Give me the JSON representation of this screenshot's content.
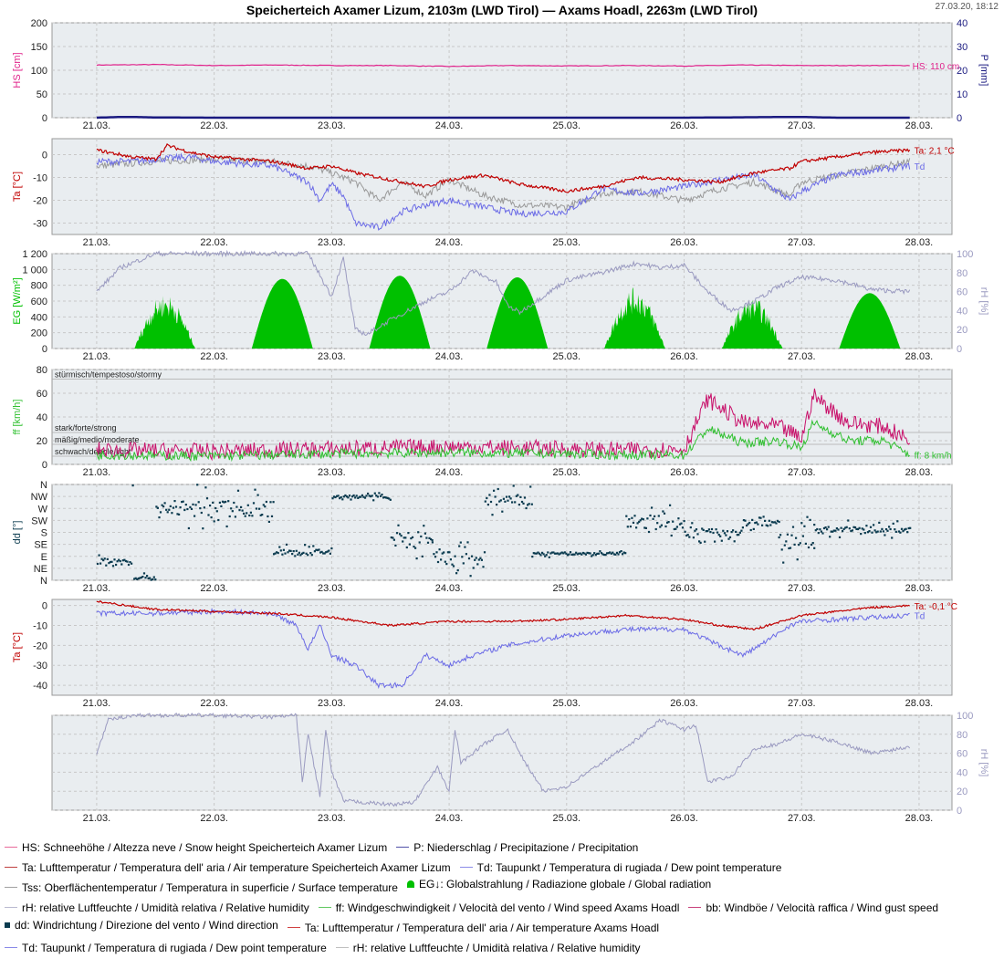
{
  "title": "Speicherteich Axamer Lizum, 2103m (LWD Tirol) — Axams Hoadl, 2263m (LWD Tirol)",
  "timestamp": "27.03.20, 18:12",
  "colors": {
    "snow": "#e0218a",
    "precip": "#1a1a80",
    "ta": "#c00000",
    "td": "#6a6ae6",
    "tss": "#9a9a9a",
    "eg": "#00c000",
    "rh": "#9a9ac0",
    "ff": "#30c030",
    "bb": "#c8106a",
    "dd": "#0b3b4f",
    "grid": "#c8c8c8",
    "plotbg": "#e9edf0"
  },
  "chart_data": [
    {
      "type": "line",
      "name": "snow_precip",
      "x_ticks": [
        "21.03.",
        "22.03.",
        "23.03.",
        "24.03.",
        "25.03.",
        "26.03.",
        "27.03.",
        "28.03."
      ],
      "ylabel": "HS [cm]",
      "ylim": [
        0,
        200
      ],
      "yticks": [
        "0",
        "50",
        "100",
        "150",
        "200"
      ],
      "y2label": "P [mm]",
      "y2lim": [
        0,
        40
      ],
      "y2ticks": [
        "0",
        "10",
        "20",
        "30",
        "40"
      ],
      "series": [
        {
          "key": "HS",
          "axis": "left",
          "x": [
            0,
            0.5,
            1,
            1.5,
            2,
            2.5,
            3,
            3.5,
            4,
            4.5,
            5,
            5.5,
            6,
            6.5,
            6.92
          ],
          "values": [
            111,
            112,
            110,
            111,
            110,
            110,
            108,
            110,
            109,
            110,
            109,
            111,
            110,
            110,
            110
          ]
        },
        {
          "key": "P",
          "axis": "right",
          "x": [
            0,
            0.2,
            0.3,
            0.5,
            1,
            2,
            3,
            4,
            5,
            5.9,
            6.0,
            6.3,
            6.92
          ],
          "values": [
            0,
            0.3,
            0.3,
            0.1,
            0,
            0,
            0,
            0,
            0,
            0.3,
            0.3,
            0,
            0
          ]
        }
      ],
      "annotations": [
        {
          "key": "HS",
          "text": "HS: 110 cm"
        }
      ]
    },
    {
      "type": "line",
      "name": "temperature_lizum",
      "x_ticks": [
        "21.03.",
        "22.03.",
        "23.03.",
        "24.03.",
        "25.03.",
        "26.03.",
        "27.03.",
        "28.03."
      ],
      "ylabel": "Ta [°C]",
      "ylim": [
        -35,
        7
      ],
      "yticks": [
        "-30",
        "-20",
        "-10",
        "0"
      ],
      "series": [
        {
          "key": "Ta",
          "x": [
            0,
            0.3,
            0.5,
            0.6,
            0.8,
            1,
            1.5,
            1.8,
            2,
            2.2,
            2.5,
            2.8,
            3,
            3.3,
            3.6,
            4,
            4.3,
            4.6,
            5,
            5.3,
            5.6,
            5.9,
            6,
            6.3,
            6.6,
            6.92
          ],
          "values": [
            2,
            -1,
            -2,
            4,
            1,
            -1,
            -3,
            -6,
            -5,
            -8,
            -11,
            -14,
            -11,
            -9,
            -13,
            -16,
            -14,
            -10,
            -11,
            -12,
            -8,
            -6,
            -3,
            -1,
            1,
            2
          ]
        },
        {
          "key": "Td",
          "x": [
            0,
            0.3,
            0.5,
            0.8,
            1,
            1.5,
            1.8,
            1.9,
            2,
            2.1,
            2.2,
            2.4,
            2.6,
            2.8,
            3,
            3.3,
            3.6,
            4,
            4.3,
            4.6,
            5,
            5.3,
            5.6,
            5.9,
            6,
            6.3,
            6.6,
            6.92
          ],
          "values": [
            -3,
            -3,
            -2,
            -1,
            -3,
            -5,
            -12,
            -20,
            -13,
            -18,
            -30,
            -32,
            -25,
            -22,
            -20,
            -23,
            -26,
            -25,
            -15,
            -17,
            -14,
            -11,
            -9,
            -20,
            -16,
            -9,
            -7,
            -5
          ]
        },
        {
          "key": "Tss",
          "x": [
            0,
            0.5,
            1,
            1.5,
            1.8,
            2,
            2.2,
            2.4,
            2.6,
            2.8,
            3,
            3.3,
            3.6,
            4,
            4.3,
            4.6,
            5,
            5.3,
            5.6,
            5.9,
            6,
            6.3,
            6.6,
            6.92
          ],
          "values": [
            -5,
            -3,
            -2,
            -3,
            -5,
            -8,
            -12,
            -20,
            -12,
            -18,
            -11,
            -18,
            -22,
            -23,
            -17,
            -16,
            -20,
            -15,
            -12,
            -18,
            -12,
            -9,
            -6,
            -3
          ]
        }
      ],
      "annotations": [
        {
          "key": "Ta",
          "text": "Ta: 2,1 °C"
        },
        {
          "key": "Td",
          "text": "Td"
        }
      ]
    },
    {
      "type": "area",
      "name": "radiation_humidity",
      "x_ticks": [
        "21.03.",
        "22.03.",
        "23.03.",
        "24.03.",
        "25.03.",
        "26.03.",
        "27.03.",
        "28.03."
      ],
      "ylabel": "EG [W/m²]",
      "ylim": [
        0,
        1200
      ],
      "yticks": [
        "0",
        "200",
        "400",
        "600",
        "800",
        "1 000",
        "1 200"
      ],
      "y2label": "rH [%]",
      "y2lim": [
        0,
        100
      ],
      "y2ticks": [
        "0",
        "20",
        "40",
        "60",
        "80",
        "100"
      ],
      "days": [
        {
          "peak": 0.58,
          "value": 700
        },
        {
          "peak": 1.58,
          "value": 880
        },
        {
          "peak": 2.58,
          "value": 920
        },
        {
          "peak": 3.58,
          "value": 900
        },
        {
          "peak": 4.58,
          "value": 780
        },
        {
          "peak": 5.58,
          "value": 650
        },
        {
          "peak": 6.58,
          "value": 700
        }
      ],
      "series": [
        {
          "key": "rH",
          "axis": "right",
          "x": [
            0,
            0.2,
            0.5,
            0.8,
            1,
            1.5,
            1.8,
            2.0,
            2.1,
            2.2,
            2.3,
            2.5,
            2.8,
            3.0,
            3.2,
            3.4,
            3.5,
            3.6,
            3.8,
            4,
            4.3,
            4.6,
            4.8,
            5.0,
            5.2,
            5.4,
            5.6,
            5.8,
            6.0,
            6.3,
            6.6,
            6.92
          ],
          "values": [
            60,
            85,
            100,
            100,
            100,
            100,
            100,
            55,
            95,
            20,
            15,
            30,
            50,
            60,
            82,
            70,
            45,
            38,
            55,
            72,
            80,
            90,
            85,
            88,
            60,
            40,
            50,
            65,
            75,
            72,
            62,
            60
          ]
        }
      ]
    },
    {
      "type": "line",
      "name": "wind_speed",
      "x_ticks": [
        "21.03.",
        "22.03.",
        "23.03.",
        "24.03.",
        "25.03.",
        "26.03.",
        "27.03.",
        "28.03."
      ],
      "ylabel": "ff [km/h]",
      "ylim": [
        0,
        80
      ],
      "yticks": [
        "0",
        "20",
        "40",
        "60",
        "80"
      ],
      "bands": [
        {
          "label": "stürmisch/tempestoso/stormy",
          "value": 75
        },
        {
          "label": "stark/forte/strong",
          "value": 30
        },
        {
          "label": "mäßig/medio/moderate",
          "value": 20
        },
        {
          "label": "schwach/debole/light",
          "value": 10
        }
      ],
      "series": [
        {
          "key": "ff",
          "x": [
            0,
            1,
            2,
            3,
            4,
            4.5,
            5,
            5.2,
            5.5,
            5.8,
            6,
            6.1,
            6.4,
            6.7,
            6.92
          ],
          "values": [
            8,
            7,
            9,
            10,
            9,
            8,
            8,
            30,
            18,
            20,
            14,
            35,
            20,
            20,
            8
          ]
        },
        {
          "key": "bb",
          "x": [
            0,
            1,
            2,
            3,
            4,
            4.5,
            5,
            5.2,
            5.5,
            5.8,
            6,
            6.1,
            6.4,
            6.7,
            6.92
          ],
          "values": [
            12,
            11,
            13,
            15,
            13,
            12,
            13,
            55,
            35,
            32,
            22,
            58,
            35,
            32,
            20
          ]
        }
      ],
      "annotations": [
        {
          "key": "ff",
          "text": "ff: 8 km/h"
        }
      ]
    },
    {
      "type": "scatter",
      "name": "wind_direction",
      "x_ticks": [
        "21.03.",
        "22.03.",
        "23.03.",
        "24.03.",
        "25.03.",
        "26.03.",
        "27.03.",
        "28.03."
      ],
      "ylabel": "dd [°]",
      "ylim": [
        0,
        360
      ],
      "ytick_labels": [
        "N",
        "NE",
        "E",
        "SE",
        "S",
        "SW",
        "W",
        "NW",
        "N"
      ],
      "segments": [
        {
          "x": [
            0,
            0.3
          ],
          "center": 70,
          "spread": 40
        },
        {
          "x": [
            0.3,
            0.5
          ],
          "center": 10,
          "spread": 20
        },
        {
          "x": [
            0.5,
            1.5
          ],
          "center": 270,
          "spread": 90
        },
        {
          "x": [
            1.5,
            2.0
          ],
          "center": 105,
          "spread": 30
        },
        {
          "x": [
            2.0,
            2.5
          ],
          "center": 315,
          "spread": 15
        },
        {
          "x": [
            2.5,
            2.85
          ],
          "center": 150,
          "spread": 90
        },
        {
          "x": [
            2.85,
            3.3
          ],
          "center": 80,
          "spread": 80
        },
        {
          "x": [
            3.3,
            3.7
          ],
          "center": 300,
          "spread": 60
        },
        {
          "x": [
            3.7,
            4.5
          ],
          "center": 100,
          "spread": 15
        },
        {
          "x": [
            4.5,
            5.0
          ],
          "center": 220,
          "spread": 80
        },
        {
          "x": [
            5.0,
            5.5
          ],
          "center": 180,
          "spread": 40
        },
        {
          "x": [
            5.5,
            5.8
          ],
          "center": 215,
          "spread": 30
        },
        {
          "x": [
            5.8,
            6.1
          ],
          "center": 150,
          "spread": 90
        },
        {
          "x": [
            6.1,
            6.92
          ],
          "center": 190,
          "spread": 35
        }
      ]
    },
    {
      "type": "line",
      "name": "temperature_hoadl",
      "x_ticks": [
        "21.03.",
        "22.03.",
        "23.03.",
        "24.03.",
        "25.03.",
        "26.03.",
        "27.03.",
        "28.03."
      ],
      "ylabel": "Ta [°C]",
      "ylim": [
        -45,
        3
      ],
      "yticks": [
        "-40",
        "-30",
        "-20",
        "-10",
        "0"
      ],
      "series": [
        {
          "key": "Ta",
          "x": [
            0,
            0.5,
            1,
            1.5,
            2,
            2.5,
            3,
            3.5,
            4,
            4.5,
            5,
            5.3,
            5.6,
            6,
            6.3,
            6.6,
            6.92
          ],
          "values": [
            2,
            -2,
            -3,
            -4,
            -6,
            -10,
            -8,
            -8,
            -7,
            -5,
            -7,
            -10,
            -12,
            -5,
            -3,
            -1,
            -0.1
          ]
        },
        {
          "key": "Td",
          "x": [
            0,
            0.5,
            1,
            1.5,
            1.7,
            1.8,
            1.9,
            2.0,
            2.2,
            2.4,
            2.6,
            2.8,
            3.0,
            3.2,
            3.5,
            4.0,
            4.5,
            5.0,
            5.3,
            5.5,
            5.7,
            5.9,
            6.0,
            6.3,
            6.6,
            6.92
          ],
          "values": [
            -4,
            -4,
            -3,
            -4,
            -10,
            -22,
            -10,
            -25,
            -30,
            -40,
            -40,
            -25,
            -30,
            -25,
            -20,
            -15,
            -12,
            -12,
            -20,
            -25,
            -18,
            -10,
            -8,
            -7,
            -6,
            -5
          ]
        }
      ],
      "annotations": [
        {
          "key": "Ta",
          "text": "Ta: -0,1 °C"
        },
        {
          "key": "Td",
          "text": "Td"
        }
      ]
    },
    {
      "type": "line",
      "name": "humidity_hoadl",
      "x_ticks": [
        "21.03.",
        "22.03.",
        "23.03.",
        "24.03.",
        "25.03.",
        "26.03.",
        "27.03.",
        "28.03."
      ],
      "y2label": "rH [%]",
      "y2lim": [
        0,
        100
      ],
      "y2ticks": [
        "0",
        "20",
        "40",
        "60",
        "80",
        "100"
      ],
      "series": [
        {
          "key": "rH",
          "x": [
            0,
            0.1,
            0.3,
            0.5,
            0.8,
            1,
            1.5,
            1.7,
            1.75,
            1.8,
            1.9,
            1.95,
            2.0,
            2.1,
            2.3,
            2.5,
            2.7,
            2.9,
            3.0,
            3.05,
            3.1,
            3.3,
            3.5,
            3.6,
            3.8,
            4.0,
            4.3,
            4.6,
            4.8,
            5.0,
            5.1,
            5.2,
            5.4,
            5.6,
            5.8,
            6.0,
            6.3,
            6.6,
            6.92
          ],
          "values": [
            60,
            95,
            100,
            100,
            100,
            100,
            98,
            100,
            30,
            80,
            15,
            85,
            40,
            10,
            8,
            6,
            8,
            45,
            20,
            85,
            50,
            70,
            85,
            60,
            20,
            25,
            50,
            75,
            95,
            85,
            90,
            30,
            35,
            65,
            70,
            80,
            72,
            60,
            67
          ]
        }
      ]
    }
  ],
  "legend": [
    [
      {
        "style": "line",
        "color": "#e86a9a",
        "text": "HS: Schneehöhe / Altezza neve / Snow height  Speicherteich Axamer Lizum"
      },
      {
        "style": "line",
        "color": "#5050a8",
        "text": "P: Niederschlag / Precipitazione / Precipitation"
      }
    ],
    [
      {
        "style": "line",
        "color": "#c04040",
        "text": "Ta: Lufttemperatur / Temperatura dell' aria / Air temperature  Speicherteich Axamer Lizum"
      },
      {
        "style": "line",
        "color": "#8a8ae8",
        "text": "Td: Taupunkt / Temperatura di rugiada / Dew point temperature"
      }
    ],
    [
      {
        "style": "line",
        "color": "#a0a0a0",
        "text": "Tss: Oberflächentemperatur / Temperatura in superficie / Surface temperature"
      },
      {
        "style": "area",
        "color": "#00c000",
        "text": "EG↓: Globalstrahlung / Radiazione globale / Global radiation"
      }
    ],
    [
      {
        "style": "line",
        "color": "#b8b8d0",
        "text": "rH: relative Luftfeuchte / Umidità relativa / Relative humidity"
      },
      {
        "style": "line",
        "color": "#60c860",
        "text": "ff: Windgeschwindigkeit / Velocità del vento / Wind speed  Axams Hoadl"
      },
      {
        "style": "line",
        "color": "#c8407a",
        "text": "bb: Windböe / Velocità raffica / Wind gust speed"
      }
    ],
    [
      {
        "style": "dot",
        "color": "#0b3b4f",
        "text": "dd: Windrichtung / Direzione del vento / Wind direction"
      },
      {
        "style": "line",
        "color": "#d04040",
        "text": "Ta: Lufttemperatur / Temperatura dell' aria / Air temperature  Axams Hoadl"
      }
    ],
    [
      {
        "style": "line",
        "color": "#8a8ae8",
        "text": "Td: Taupunkt / Temperatura di rugiada / Dew point temperature"
      },
      {
        "style": "line",
        "color": "#c0c0c0",
        "text": "rH: relative Luftfeuchte / Umidità relativa / Relative humidity"
      }
    ]
  ]
}
